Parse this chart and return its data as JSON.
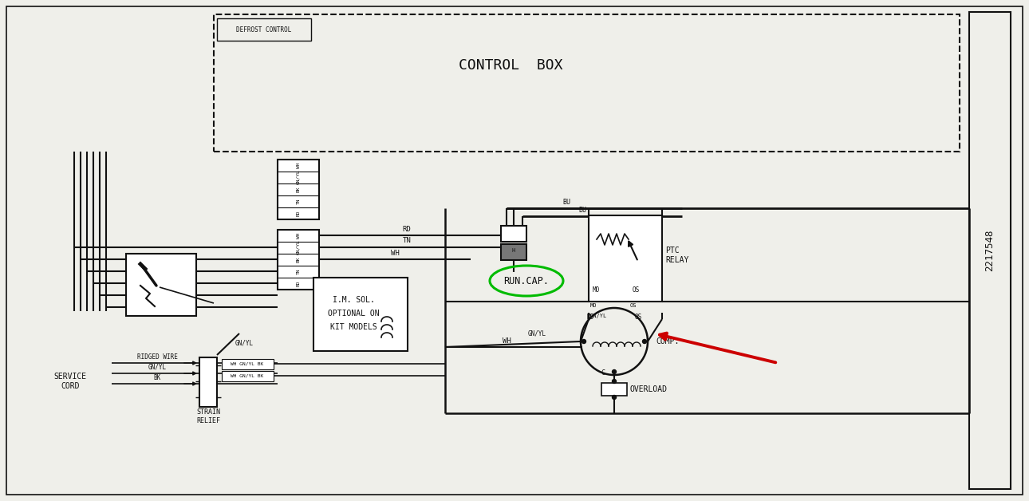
{
  "bg_color": "#efefea",
  "line_color": "#111111",
  "part_number": "2217548",
  "control_box_label": "CONTROL  BOX",
  "defrost_label": "DEFROST CONTROL",
  "run_cap_label": "RUN.CAP.",
  "ptc_relay_label": "PTC\nRELAY",
  "comp_label": "COMP.",
  "overload_label": "OVERLOAD",
  "im_sol_line1": "I.M. SOL.",
  "im_sol_line2": "OPTIONAL ON",
  "im_sol_line3": "KIT MODELS",
  "service_cord_label": "SERVICE\nCORD",
  "strain_relief_label": "STRAIN\nRELIEF",
  "ridged_wire_label": "RIDGED WIRE",
  "gn_yl_label": "GN/YL",
  "bk_label": "BK",
  "connector_labels": [
    "WH",
    "GN/YL",
    "BK",
    "TN",
    "RD"
  ],
  "wire_rd": "RD",
  "wire_tn": "TN",
  "wire_wh": "WH",
  "wire_bu": "BU",
  "wire_mo": "MO",
  "wire_os": "OS",
  "wire_c": "C",
  "wire_gnyl": "GN/YL",
  "green_color": "#00bb00",
  "red_color": "#cc0000"
}
